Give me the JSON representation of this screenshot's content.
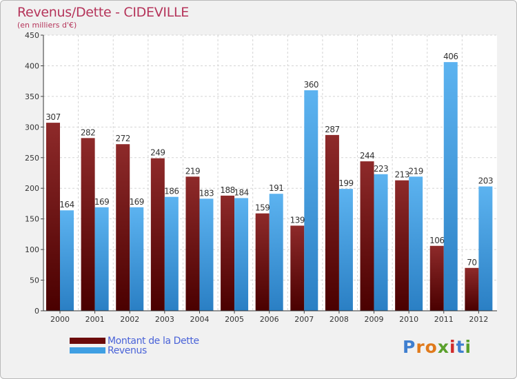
{
  "title": "Revenus/Dette - CIDEVILLE",
  "subtitle": "(en milliers d'€)",
  "logo_text": "Proxiti",
  "colors": {
    "dette": "#6b0a0a",
    "revenus": "#3f9fe3",
    "title": "#b5345a",
    "legend_text": "#4a63d8"
  },
  "chart_data": {
    "type": "bar",
    "categories": [
      "2000",
      "2001",
      "2002",
      "2003",
      "2004",
      "2005",
      "2006",
      "2007",
      "2008",
      "2009",
      "2010",
      "2011",
      "2012"
    ],
    "series": [
      {
        "name": "Montant de la Dette",
        "values": [
          307,
          282,
          272,
          249,
          219,
          188,
          159,
          139,
          287,
          244,
          213,
          106,
          70
        ]
      },
      {
        "name": "Revenus",
        "values": [
          164,
          169,
          169,
          186,
          183,
          184,
          191,
          360,
          199,
          223,
          219,
          406,
          203
        ]
      }
    ],
    "ylim": [
      0,
      450
    ],
    "yticks": [
      0,
      50,
      100,
      150,
      200,
      250,
      300,
      350,
      400,
      450
    ],
    "grid": true,
    "legend_position": "bottom-left"
  }
}
